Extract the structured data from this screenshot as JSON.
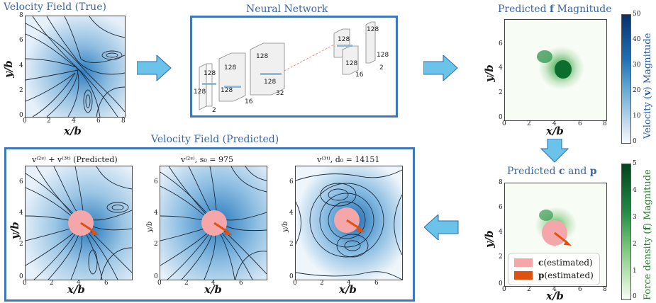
{
  "panels": {
    "true_field": {
      "title": "Velocity Field (True)",
      "xlabel": "x/b",
      "ylabel": "y/b",
      "xticks": [
        "0",
        "2",
        "4",
        "6",
        "8"
      ],
      "yticks": [
        "0",
        "2",
        "4",
        "6",
        "8"
      ]
    },
    "network": {
      "title": "Neural Network",
      "layer_labels": [
        "128",
        "128",
        "2",
        "128",
        "128",
        "16",
        "128",
        "128",
        "32",
        "128",
        "128",
        "16",
        "128",
        "128",
        "2"
      ]
    },
    "predicted_f": {
      "title_pre": "Predicted ",
      "title_bold": "f",
      "title_post": " Magnitude",
      "xlabel": "x/b",
      "ylabel": "y/b",
      "xticks": [
        "0",
        "2",
        "4",
        "6",
        "8"
      ],
      "yticks": [
        "0",
        "2",
        "4",
        "6"
      ]
    },
    "predicted_cp": {
      "title_pre": "Predicted ",
      "title_bold1": "c",
      "title_mid": " and ",
      "title_bold2": "p",
      "xlabel": "x/b",
      "ylabel": "y/b",
      "xticks": [
        "0",
        "2",
        "4",
        "6",
        "8"
      ],
      "yticks": [
        "0",
        "2",
        "4",
        "6",
        "8"
      ],
      "legend": [
        {
          "bold": "c",
          "text": " (estimated)",
          "color": "#f4a6a8"
        },
        {
          "bold": "p",
          "text": " (estimated)",
          "color": "#e05010"
        }
      ]
    },
    "predicted_group": {
      "title": "Velocity Field (Predicted)",
      "sub1": {
        "title": "v⁽²ˢ⁾ + v⁽³ᵗ⁾ (Predicted)",
        "xlabel": "x/b",
        "ylabel": "y/b",
        "xticks": [
          "0",
          "2",
          "4",
          "6"
        ],
        "yticks": [
          "0",
          "2",
          "4",
          "6"
        ]
      },
      "sub2": {
        "title": "v⁽²ˢ⁾, s₀ = 975",
        "xlabel": "x/b",
        "ylabel": "y/b",
        "xticks": [
          "0",
          "2",
          "4",
          "6"
        ],
        "yticks": [
          "0",
          "2",
          "4",
          "6"
        ]
      },
      "sub3": {
        "title": "v⁽³ᵗ⁾, d₀ = 14151",
        "xlabel": "x/b",
        "ylabel": "y/b",
        "xticks": [
          "0",
          "2",
          "4",
          "6"
        ],
        "yticks": [
          "0",
          "2",
          "4",
          "6"
        ]
      }
    }
  },
  "colorbars": {
    "velocity": {
      "label_pre": "Velocity (",
      "label_bold": "v",
      "label_post": ") Magnitude",
      "ticks": [
        "50",
        "40",
        "30",
        "20",
        "10",
        "0"
      ],
      "color_top": "#08306b",
      "color_bottom": "#f7fbff"
    },
    "force": {
      "label_pre": "Force density (",
      "label_bold": "f",
      "label_post": ") Magnitude",
      "ticks": [
        "5",
        "4",
        "3",
        "2",
        "1",
        "0"
      ],
      "color_top": "#00441b",
      "color_bottom": "#f7fcf5"
    }
  },
  "colors": {
    "arrow": "#6cc3ea",
    "frame": "#3d78b8",
    "title_blue": "#3a67a6"
  }
}
